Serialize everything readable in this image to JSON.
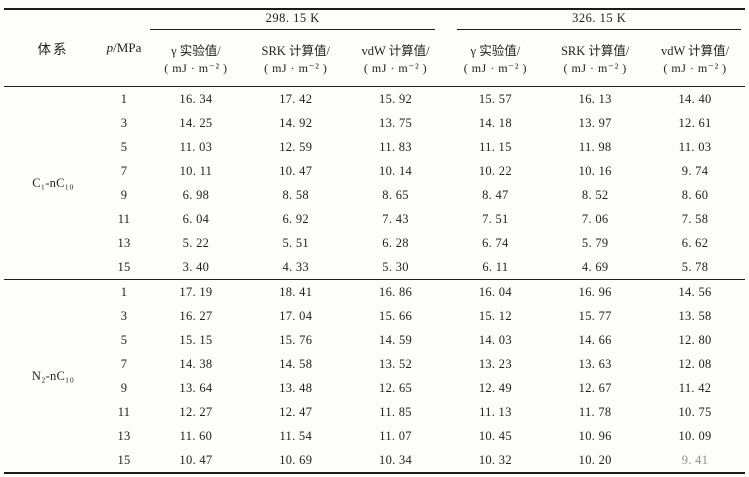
{
  "table": {
    "header": {
      "system_label": "体系",
      "pressure_symbol": "p",
      "pressure_rest": "/MPa",
      "groups": [
        {
          "temp": "298. 15 K",
          "columns": [
            {
              "line1": "γ 实验值/",
              "line2": "( mJ · m⁻² )"
            },
            {
              "line1": "SRK 计算值/",
              "line2": "( mJ · m⁻² )"
            },
            {
              "line1": "vdW 计算值/",
              "line2": "( mJ · m⁻² )"
            }
          ]
        },
        {
          "temp": "326. 15 K",
          "columns": [
            {
              "line1": "γ 实验值/",
              "line2": "( mJ · m⁻² )"
            },
            {
              "line1": "SRK 计算值/",
              "line2": "( mJ · m⁻² )"
            },
            {
              "line1": "vdW 计算值/",
              "line2": "( mJ · m⁻² )"
            }
          ]
        }
      ]
    },
    "systems": [
      {
        "label": "C₁-nC₁₀",
        "rows": [
          {
            "p": "1",
            "v": [
              "16. 34",
              "17. 42",
              "15. 92",
              "15. 57",
              "16. 13",
              "14. 40"
            ]
          },
          {
            "p": "3",
            "v": [
              "14. 25",
              "14. 92",
              "13. 75",
              "14. 18",
              "13. 97",
              "12. 61"
            ]
          },
          {
            "p": "5",
            "v": [
              "11. 03",
              "12. 59",
              "11. 83",
              "11. 15",
              "11. 98",
              "11. 03"
            ]
          },
          {
            "p": "7",
            "v": [
              "10. 11",
              "10. 47",
              "10. 14",
              "10. 22",
              "10. 16",
              "9. 74"
            ]
          },
          {
            "p": "9",
            "v": [
              "6. 98",
              "8. 58",
              "8. 65",
              "8. 47",
              "8. 52",
              "8. 60"
            ]
          },
          {
            "p": "11",
            "v": [
              "6. 04",
              "6. 92",
              "7. 43",
              "7. 51",
              "7. 06",
              "7. 58"
            ]
          },
          {
            "p": "13",
            "v": [
              "5. 22",
              "5. 51",
              "6. 28",
              "6. 74",
              "5. 79",
              "6. 62"
            ]
          },
          {
            "p": "15",
            "v": [
              "3. 40",
              "4. 33",
              "5. 30",
              "6. 11",
              "4. 69",
              "5. 78"
            ]
          }
        ]
      },
      {
        "label": "N₂-nC₁₀",
        "rows": [
          {
            "p": "1",
            "v": [
              "17. 19",
              "18. 41",
              "16. 86",
              "16. 04",
              "16. 96",
              "14. 56"
            ]
          },
          {
            "p": "3",
            "v": [
              "16. 27",
              "17. 04",
              "15. 66",
              "15. 12",
              "15. 77",
              "13. 58"
            ]
          },
          {
            "p": "5",
            "v": [
              "15. 15",
              "15. 76",
              "14. 59",
              "14. 03",
              "14. 66",
              "12. 80"
            ]
          },
          {
            "p": "7",
            "v": [
              "14. 38",
              "14. 58",
              "13. 52",
              "13. 23",
              "13. 63",
              "12. 08"
            ]
          },
          {
            "p": "9",
            "v": [
              "13. 64",
              "13. 48",
              "12. 65",
              "12. 49",
              "12. 67",
              "11. 42"
            ]
          },
          {
            "p": "11",
            "v": [
              "12. 27",
              "12. 47",
              "11. 85",
              "11. 13",
              "11. 78",
              "10. 75"
            ]
          },
          {
            "p": "13",
            "v": [
              "11. 60",
              "11. 54",
              "11. 07",
              "10. 45",
              "10. 96",
              "10. 09"
            ]
          },
          {
            "p": "15",
            "v": [
              "10. 47",
              "10. 69",
              "10. 34",
              "10. 32",
              "10. 20",
              "9. 41"
            ]
          }
        ]
      }
    ]
  }
}
